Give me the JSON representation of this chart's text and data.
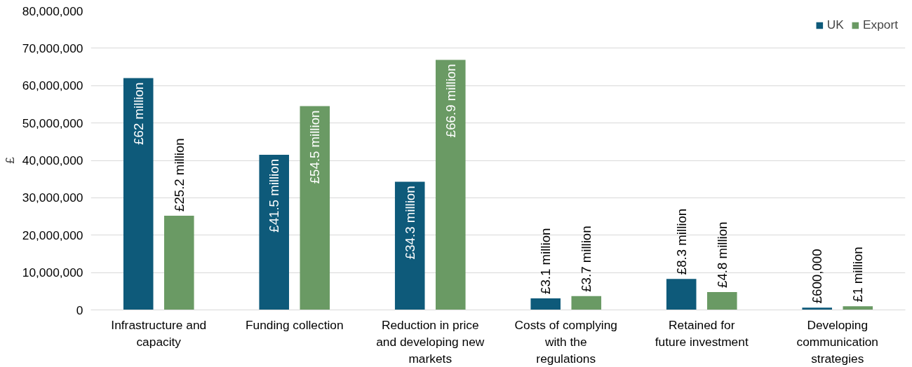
{
  "chart_data": {
    "type": "bar",
    "ylabel": "£",
    "categories": [
      "Infrastructure and capacity",
      "Funding collection",
      "Reduction in price and developing new markets",
      "Costs of complying with the regulations",
      "Retained for future investment",
      "Developing communication strategies"
    ],
    "series": [
      {
        "name": "UK",
        "color": "#0e5a7a",
        "values": [
          62000000,
          41500000,
          34300000,
          3100000,
          8300000,
          600000
        ],
        "value_labels": [
          "£62 million",
          "£41.5 million",
          "£34.3 million",
          "£3.1 million",
          "£8.3 million",
          "£600,000"
        ]
      },
      {
        "name": "Export",
        "color": "#6a9a64",
        "values": [
          25200000,
          54500000,
          66900000,
          3700000,
          4800000,
          1000000
        ],
        "value_labels": [
          "£25.2 million",
          "£54.5 million",
          "£66.9 million",
          "£3.7 million",
          "£4.8 million",
          "£1 million"
        ]
      }
    ],
    "ylim": [
      0,
      80000000
    ],
    "yticks": [
      0,
      {
        "value": 10000000,
        "label": "10,000,000"
      },
      {
        "value": 20000000,
        "label": "20,000,000"
      },
      {
        "value": 30000000,
        "label": "30,000,000"
      },
      {
        "value": 40000000,
        "label": "40,000,000"
      },
      {
        "value": 50000000,
        "label": "50,000,000"
      },
      {
        "value": 60000000,
        "label": "60,000,000"
      },
      {
        "value": 70000000,
        "label": "70,000,000"
      },
      {
        "value": 80000000,
        "label": "80,000,000"
      }
    ],
    "grid": "y",
    "legend": "top right"
  }
}
